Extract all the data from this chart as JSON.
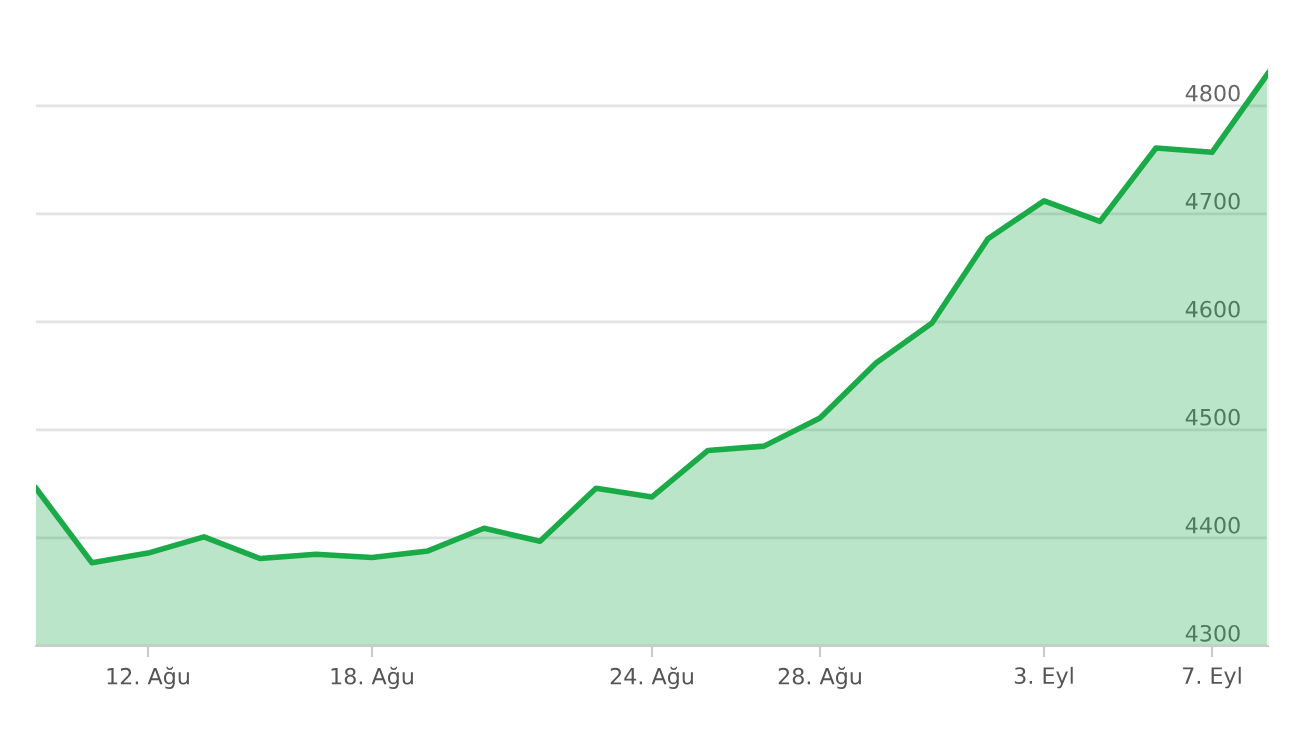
{
  "chart_data": {
    "type": "area",
    "categories": [
      null,
      null,
      "12. Ağu",
      null,
      null,
      null,
      "18. Ağu",
      null,
      null,
      null,
      null,
      "24. Ağu",
      null,
      null,
      "28. Ağu",
      null,
      null,
      null,
      "3. Eyl",
      null,
      null,
      "7. Eyl",
      null
    ],
    "series": [
      {
        "color": "#1aaa48",
        "values": [
          4446,
          4377,
          4386,
          4401,
          4381,
          4385,
          4382,
          4388,
          4409,
          4397,
          4446,
          4438,
          4481,
          4485,
          4511,
          4562,
          4599,
          4677,
          4712,
          4693,
          4761,
          4757,
          4830
        ]
      }
    ],
    "ylim": [
      4300,
      4835
    ],
    "yticks": [
      4300,
      4400,
      4500,
      4600,
      4700,
      4800
    ],
    "grid": "y",
    "legend": false
  }
}
